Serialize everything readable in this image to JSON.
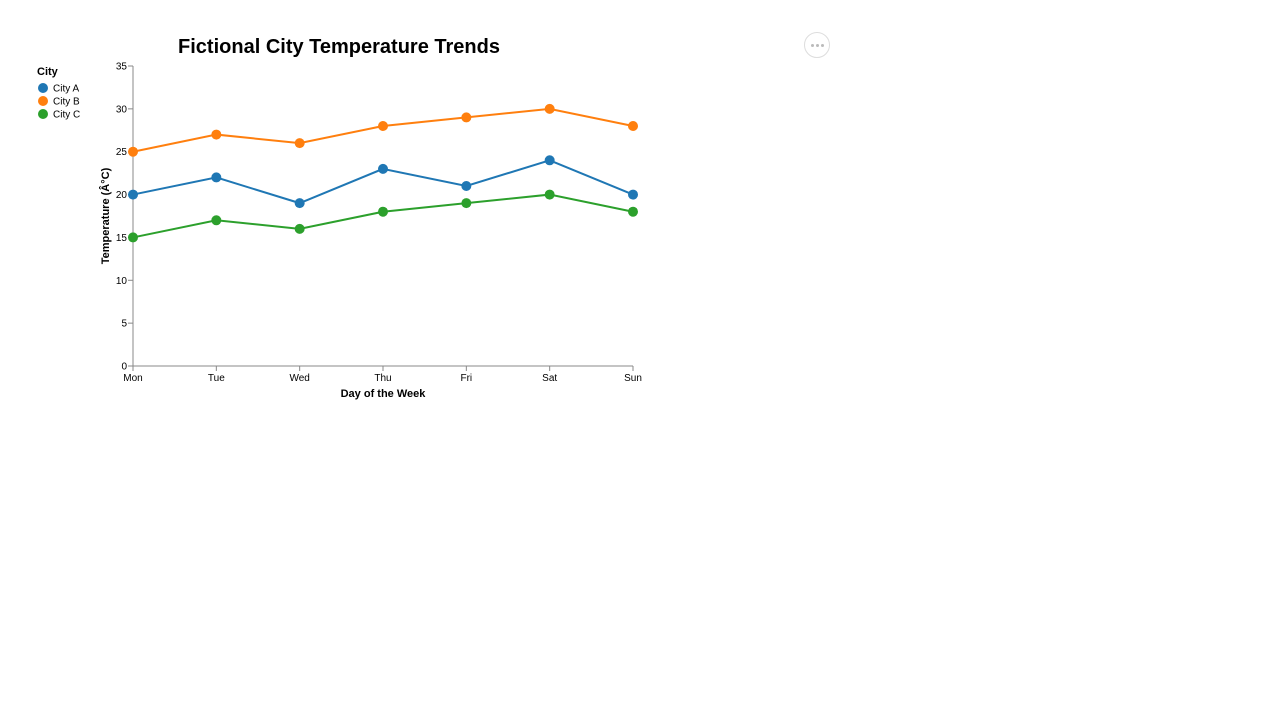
{
  "chart_data": {
    "type": "line",
    "title": "Fictional City Temperature Trends",
    "xlabel": "Day of the Week",
    "ylabel": "Temperature (Â°C)",
    "categories": [
      "Mon",
      "Tue",
      "Wed",
      "Thu",
      "Fri",
      "Sat",
      "Sun"
    ],
    "ylim": [
      0,
      35
    ],
    "yticks": [
      0,
      5,
      10,
      15,
      20,
      25,
      30,
      35
    ],
    "grid": false,
    "legend": {
      "title": "City",
      "position": "top-left"
    },
    "series": [
      {
        "name": "City A",
        "color": "#1f77b4",
        "values": [
          20,
          22,
          19,
          23,
          21,
          24,
          20
        ]
      },
      {
        "name": "City B",
        "color": "#ff7f0e",
        "values": [
          25,
          27,
          26,
          28,
          29,
          30,
          28
        ]
      },
      {
        "name": "City C",
        "color": "#2ca02c",
        "values": [
          15,
          17,
          16,
          18,
          19,
          20,
          18
        ]
      }
    ]
  },
  "actions_menu": {
    "icon": "ellipsis-icon"
  }
}
